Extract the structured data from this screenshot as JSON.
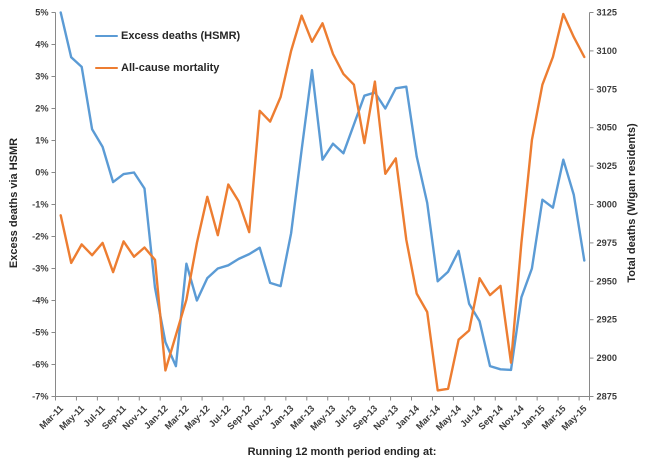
{
  "chart_data": {
    "type": "line",
    "title": "",
    "xlabel": "Running 12 month period ending at:",
    "grid": false,
    "legend_position": "top-left-inside",
    "x_tick_every": 2,
    "x_categories": [
      "Mar-11",
      "Apr-11",
      "May-11",
      "Jun-11",
      "Jul-11",
      "Aug-11",
      "Sep-11",
      "Oct-11",
      "Nov-11",
      "Dec-11",
      "Jan-12",
      "Feb-12",
      "Mar-12",
      "Apr-12",
      "May-12",
      "Jun-12",
      "Jul-12",
      "Aug-12",
      "Sep-12",
      "Oct-12",
      "Nov-12",
      "Dec-12",
      "Jan-13",
      "Feb-13",
      "Mar-13",
      "Apr-13",
      "May-13",
      "Jun-13",
      "Jul-13",
      "Aug-13",
      "Sep-13",
      "Oct-13",
      "Nov-13",
      "Dec-13",
      "Jan-14",
      "Feb-14",
      "Mar-14",
      "Apr-14",
      "May-14",
      "Jun-14",
      "Jul-14",
      "Aug-14",
      "Sep-14",
      "Oct-14",
      "Nov-14",
      "Dec-14",
      "Jan-15",
      "Feb-15",
      "Mar-15",
      "Apr-15",
      "May-15"
    ],
    "axes": {
      "left": {
        "title": "Excess deaths via HSMR",
        "min": -7,
        "max": 5,
        "step": 1,
        "tick_suffix": "%"
      },
      "right": {
        "title": "Total deaths (Wigan residents)",
        "min": 2875,
        "max": 3125,
        "step": 25,
        "tick_suffix": ""
      }
    },
    "legend": [
      {
        "label": "Excess deaths (HSMR)",
        "color": "#5b9bd5"
      },
      {
        "label": "All-cause mortality",
        "color": "#ed7d31"
      }
    ],
    "series": [
      {
        "name": "Excess deaths (HSMR)",
        "axis": "left",
        "color": "#5b9bd5",
        "values": [
          5.0,
          3.6,
          3.3,
          1.35,
          0.8,
          -0.3,
          -0.05,
          0.0,
          -0.5,
          -3.6,
          -5.3,
          -6.05,
          -2.85,
          -4.0,
          -3.3,
          -3.0,
          -2.9,
          -2.7,
          -2.55,
          -2.35,
          -3.45,
          -3.55,
          -1.9,
          0.7,
          3.2,
          0.4,
          0.9,
          0.6,
          1.5,
          2.4,
          2.5,
          2.0,
          2.63,
          2.68,
          0.5,
          -0.95,
          -3.4,
          -3.1,
          -2.45,
          -4.1,
          -4.65,
          -6.05,
          -6.15,
          -6.17,
          -3.9,
          -3.0,
          -0.85,
          -1.1,
          0.4,
          -0.7,
          -2.75
        ]
      },
      {
        "name": "All-cause mortality",
        "axis": "right",
        "color": "#ed7d31",
        "values": [
          2993,
          2962,
          2974,
          2967,
          2975,
          2956,
          2976,
          2966,
          2972,
          2964,
          2892,
          2915,
          2938,
          2975,
          3005,
          2980,
          3013,
          3002,
          2982,
          3061,
          3054,
          3070,
          3100,
          3123,
          3106,
          3118,
          3098,
          3085,
          3078,
          3040,
          3080,
          3020,
          3030,
          2977,
          2942,
          2930,
          2879,
          2880,
          2912,
          2918,
          2952,
          2941,
          2947,
          2897,
          2975,
          3042,
          3078,
          3096,
          3124,
          3109,
          3096
        ]
      }
    ],
    "style": {
      "axis_color": "#898989",
      "tick_label_color": "#3d3d3d",
      "line_width": 2.4
    }
  }
}
